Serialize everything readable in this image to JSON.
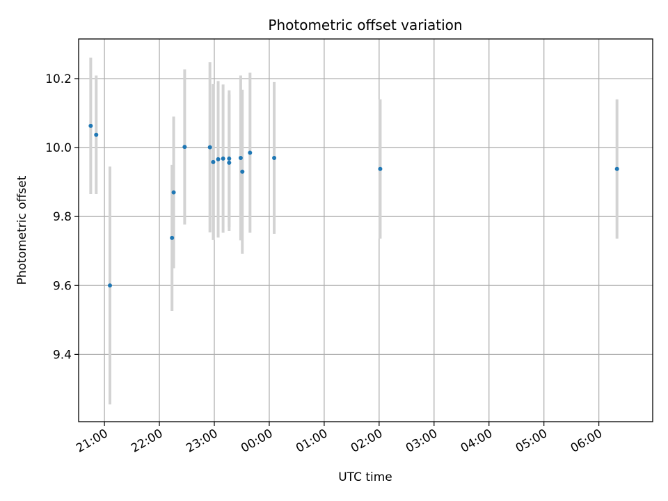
{
  "chart_data": {
    "type": "scatter",
    "title": "Photometric offset variation",
    "xlabel": "UTC time",
    "ylabel": "Photometric offset",
    "x_unit": "hours after 20:00 UTC (day 1)",
    "xlim": [
      0.53,
      10.98
    ],
    "ylim": [
      9.205,
      10.315
    ],
    "grid": true,
    "x_ticks": [
      {
        "value": 1.0,
        "label": "21:00"
      },
      {
        "value": 2.0,
        "label": "22:00"
      },
      {
        "value": 3.0,
        "label": "23:00"
      },
      {
        "value": 4.0,
        "label": "00:00"
      },
      {
        "value": 5.0,
        "label": "01:00"
      },
      {
        "value": 6.0,
        "label": "02:00"
      },
      {
        "value": 7.0,
        "label": "03:00"
      },
      {
        "value": 8.0,
        "label": "04:00"
      },
      {
        "value": 9.0,
        "label": "05:00"
      },
      {
        "value": 10.0,
        "label": "06:00"
      }
    ],
    "y_ticks": [
      {
        "value": 9.4,
        "label": "9.4"
      },
      {
        "value": 9.6,
        "label": "9.6"
      },
      {
        "value": 9.8,
        "label": "9.8"
      },
      {
        "value": 10.0,
        "label": "10.0"
      },
      {
        "value": 10.2,
        "label": "10.2"
      }
    ],
    "colors": {
      "point": "#1f77b4",
      "errorbar": "#d3d3d3",
      "grid": "#b0b0b0",
      "axes": "#000000"
    },
    "series": [
      {
        "points": [
          {
            "x": 0.75,
            "y": 10.063,
            "err": 0.198
          },
          {
            "x": 0.85,
            "y": 10.037,
            "err": 0.172
          },
          {
            "x": 1.1,
            "y": 9.6,
            "err": 0.345
          },
          {
            "x": 2.23,
            "y": 9.738,
            "err": 0.212
          },
          {
            "x": 2.26,
            "y": 9.87,
            "err": 0.22
          },
          {
            "x": 2.46,
            "y": 10.002,
            "err": 0.225
          },
          {
            "x": 2.92,
            "y": 10.001,
            "err": 0.247
          },
          {
            "x": 2.98,
            "y": 9.958,
            "err": 0.226
          },
          {
            "x": 3.07,
            "y": 9.966,
            "err": 0.227
          },
          {
            "x": 3.16,
            "y": 9.968,
            "err": 0.215
          },
          {
            "x": 3.27,
            "y": 9.956,
            "err": 0.198
          },
          {
            "x": 3.27,
            "y": 9.968,
            "err": 0.198
          },
          {
            "x": 3.48,
            "y": 9.97,
            "err": 0.239
          },
          {
            "x": 3.51,
            "y": 9.93,
            "err": 0.238
          },
          {
            "x": 3.65,
            "y": 9.985,
            "err": 0.232
          },
          {
            "x": 4.09,
            "y": 9.97,
            "err": 0.22
          },
          {
            "x": 6.02,
            "y": 9.938,
            "err": 0.202
          },
          {
            "x": 10.33,
            "y": 9.938,
            "err": 0.202
          }
        ]
      }
    ]
  }
}
